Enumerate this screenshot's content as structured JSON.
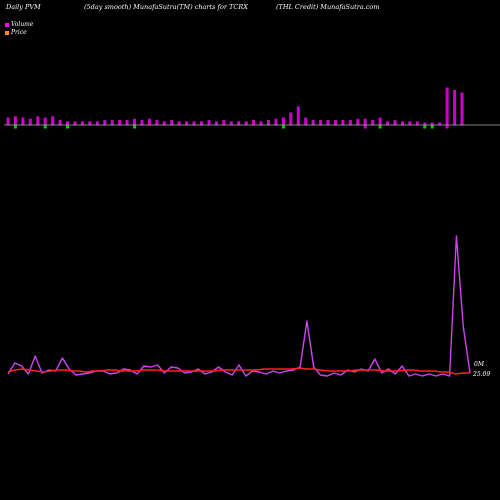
{
  "header": {
    "left": "Daily PVM",
    "middle": "(5day smooth) MunafaSutra(TM) charts for TCRX",
    "right": "(THL Credit) MunafaSutra.com"
  },
  "legend": [
    {
      "label": "Volume",
      "color": "#ff00ff"
    },
    {
      "label": "Price",
      "color": "#ff8c00"
    }
  ],
  "colors": {
    "background": "#000000",
    "volume_bar": "#cc00cc",
    "volume_down_bar": "#00cc00",
    "price_line": "#ff2020",
    "volume_line": "#cc44ee",
    "baseline": "#ffffff"
  },
  "chart_data": [
    {
      "type": "bar",
      "role": "volume",
      "baseline_value": 0,
      "values": [
        6,
        7,
        6,
        5,
        7,
        6,
        7,
        4,
        3,
        3,
        3,
        3,
        3,
        4,
        4,
        4,
        4,
        5,
        4,
        5,
        4,
        3,
        4,
        3,
        3,
        3,
        3,
        4,
        3,
        4,
        3,
        3,
        3,
        4,
        3,
        4,
        5,
        6,
        10,
        15,
        6,
        4,
        4,
        4,
        4,
        4,
        4,
        5,
        5,
        4,
        6,
        3,
        4,
        3,
        3,
        3,
        2,
        2,
        2,
        30,
        28,
        26
      ],
      "directions": [
        "u",
        "d",
        "u",
        "u",
        "u",
        "d",
        "u",
        "u",
        "d",
        "u",
        "u",
        "u",
        "u",
        "u",
        "u",
        "u",
        "u",
        "d",
        "u",
        "u",
        "u",
        "u",
        "u",
        "u",
        "u",
        "u",
        "u",
        "u",
        "u",
        "u",
        "u",
        "u",
        "u",
        "u",
        "u",
        "u",
        "u",
        "d",
        "u",
        "u",
        "u",
        "u",
        "u",
        "u",
        "u",
        "u",
        "u",
        "u",
        "d",
        "u",
        "d",
        "u",
        "u",
        "u",
        "u",
        "u",
        "d",
        "d",
        "u",
        "d",
        "u",
        "u"
      ]
    },
    {
      "type": "line",
      "role": "volume-smoothed",
      "values": [
        2,
        13,
        10,
        2,
        20,
        3,
        6,
        5,
        18,
        7,
        1,
        2,
        3,
        5,
        5,
        2,
        3,
        7,
        6,
        2,
        10,
        9,
        11,
        3,
        9,
        8,
        3,
        4,
        7,
        2,
        4,
        9,
        4,
        1,
        11,
        0,
        5,
        4,
        2,
        5,
        3,
        5,
        6,
        9,
        55,
        9,
        1,
        0,
        3,
        1,
        6,
        4,
        7,
        5,
        17,
        3,
        7,
        2,
        10,
        0,
        2,
        0,
        2,
        0,
        2,
        0,
        140,
        50,
        3
      ],
      "end_label": "0M"
    },
    {
      "type": "line",
      "role": "price",
      "values": [
        4,
        6,
        7,
        6,
        5,
        4,
        5,
        6,
        6,
        5,
        5,
        4,
        5,
        5,
        6,
        6,
        5,
        5,
        5,
        6,
        6,
        6,
        5,
        5,
        5,
        5,
        5,
        5,
        5,
        5,
        6,
        6,
        6,
        6,
        6,
        6,
        7,
        7,
        7,
        7,
        7,
        8,
        7,
        7,
        6,
        5,
        5,
        5,
        5,
        6,
        6,
        6,
        6,
        5,
        5,
        5,
        6,
        6,
        5,
        5,
        5,
        4,
        4,
        2,
        3,
        3
      ],
      "end_label": "25.09"
    }
  ]
}
